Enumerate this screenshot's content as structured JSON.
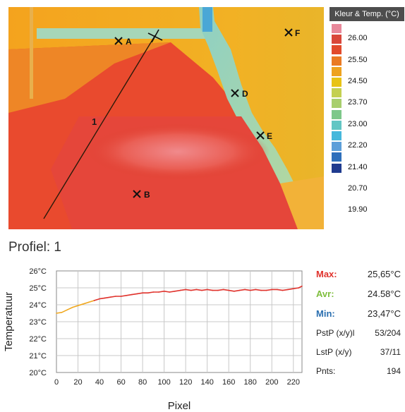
{
  "thermal_image": {
    "markers": [
      "A",
      "B",
      "D",
      "E",
      "F"
    ],
    "line_label": "1"
  },
  "color_scale": {
    "title": "Kleur & Temp. (°C)",
    "colors": [
      "#e8889a",
      "#d9473a",
      "#e24a2c",
      "#ea7a23",
      "#eea21f",
      "#e8c315",
      "#c4d051",
      "#a8cf6e",
      "#7ec88a",
      "#63c6c4",
      "#46b8dc",
      "#5d9fd9",
      "#2e6fbb",
      "#1f3b8f"
    ],
    "labels": [
      "26.00",
      "25.50",
      "24.50",
      "23.70",
      "23.00",
      "22.20",
      "21.40",
      "20.70",
      "19.90"
    ]
  },
  "profile_label": "Profiel: 1",
  "stats": {
    "max_label": "Max:",
    "max_value": "25,65°C",
    "max_color": "#e0322c",
    "avg_label": "Avr:",
    "avg_value": "24.58°C",
    "avg_color": "#7fbe3e",
    "min_label": "Min:",
    "min_value": "23,47°C",
    "min_color": "#2a6fb0",
    "pstp_label": "PstP (x/y)l",
    "pstp_value": "53/204",
    "lstp_label": "LstP (x/y)",
    "lstp_value": "37/11",
    "pnts_label": "Pnts:",
    "pnts_value": "194"
  },
  "chart_data": {
    "type": "line",
    "title": "",
    "xlabel": "Pixel",
    "ylabel": "Temperatuur",
    "xlim": [
      0,
      228
    ],
    "ylim": [
      20,
      26
    ],
    "x_ticks": [
      "0",
      "20",
      "40",
      "60",
      "80",
      "100",
      "120",
      "140",
      "160",
      "180",
      "200",
      "220"
    ],
    "y_ticks": [
      "20°C",
      "21°C",
      "22°C",
      "23°C",
      "24°C",
      "25°C",
      "26°C"
    ],
    "grid": true,
    "series": [
      {
        "color_low": "#f0a820",
        "color_high": "#e0322c",
        "threshold": 24.3,
        "x": [
          0,
          5,
          10,
          15,
          20,
          25,
          30,
          35,
          40,
          45,
          50,
          55,
          60,
          65,
          70,
          75,
          80,
          85,
          90,
          95,
          100,
          105,
          110,
          115,
          120,
          125,
          130,
          135,
          140,
          145,
          150,
          155,
          160,
          165,
          170,
          175,
          180,
          185,
          190,
          195,
          200,
          205,
          210,
          215,
          220,
          225,
          228
        ],
        "y": [
          23.5,
          23.55,
          23.7,
          23.85,
          23.95,
          24.05,
          24.15,
          24.25,
          24.35,
          24.4,
          24.45,
          24.5,
          24.5,
          24.55,
          24.6,
          24.65,
          24.7,
          24.7,
          24.75,
          24.75,
          24.8,
          24.75,
          24.8,
          24.85,
          24.9,
          24.85,
          24.9,
          24.85,
          24.9,
          24.85,
          24.85,
          24.9,
          24.85,
          24.8,
          24.85,
          24.9,
          24.85,
          24.9,
          24.85,
          24.85,
          24.9,
          24.9,
          24.85,
          24.9,
          24.95,
          25.0,
          25.1
        ]
      }
    ]
  }
}
